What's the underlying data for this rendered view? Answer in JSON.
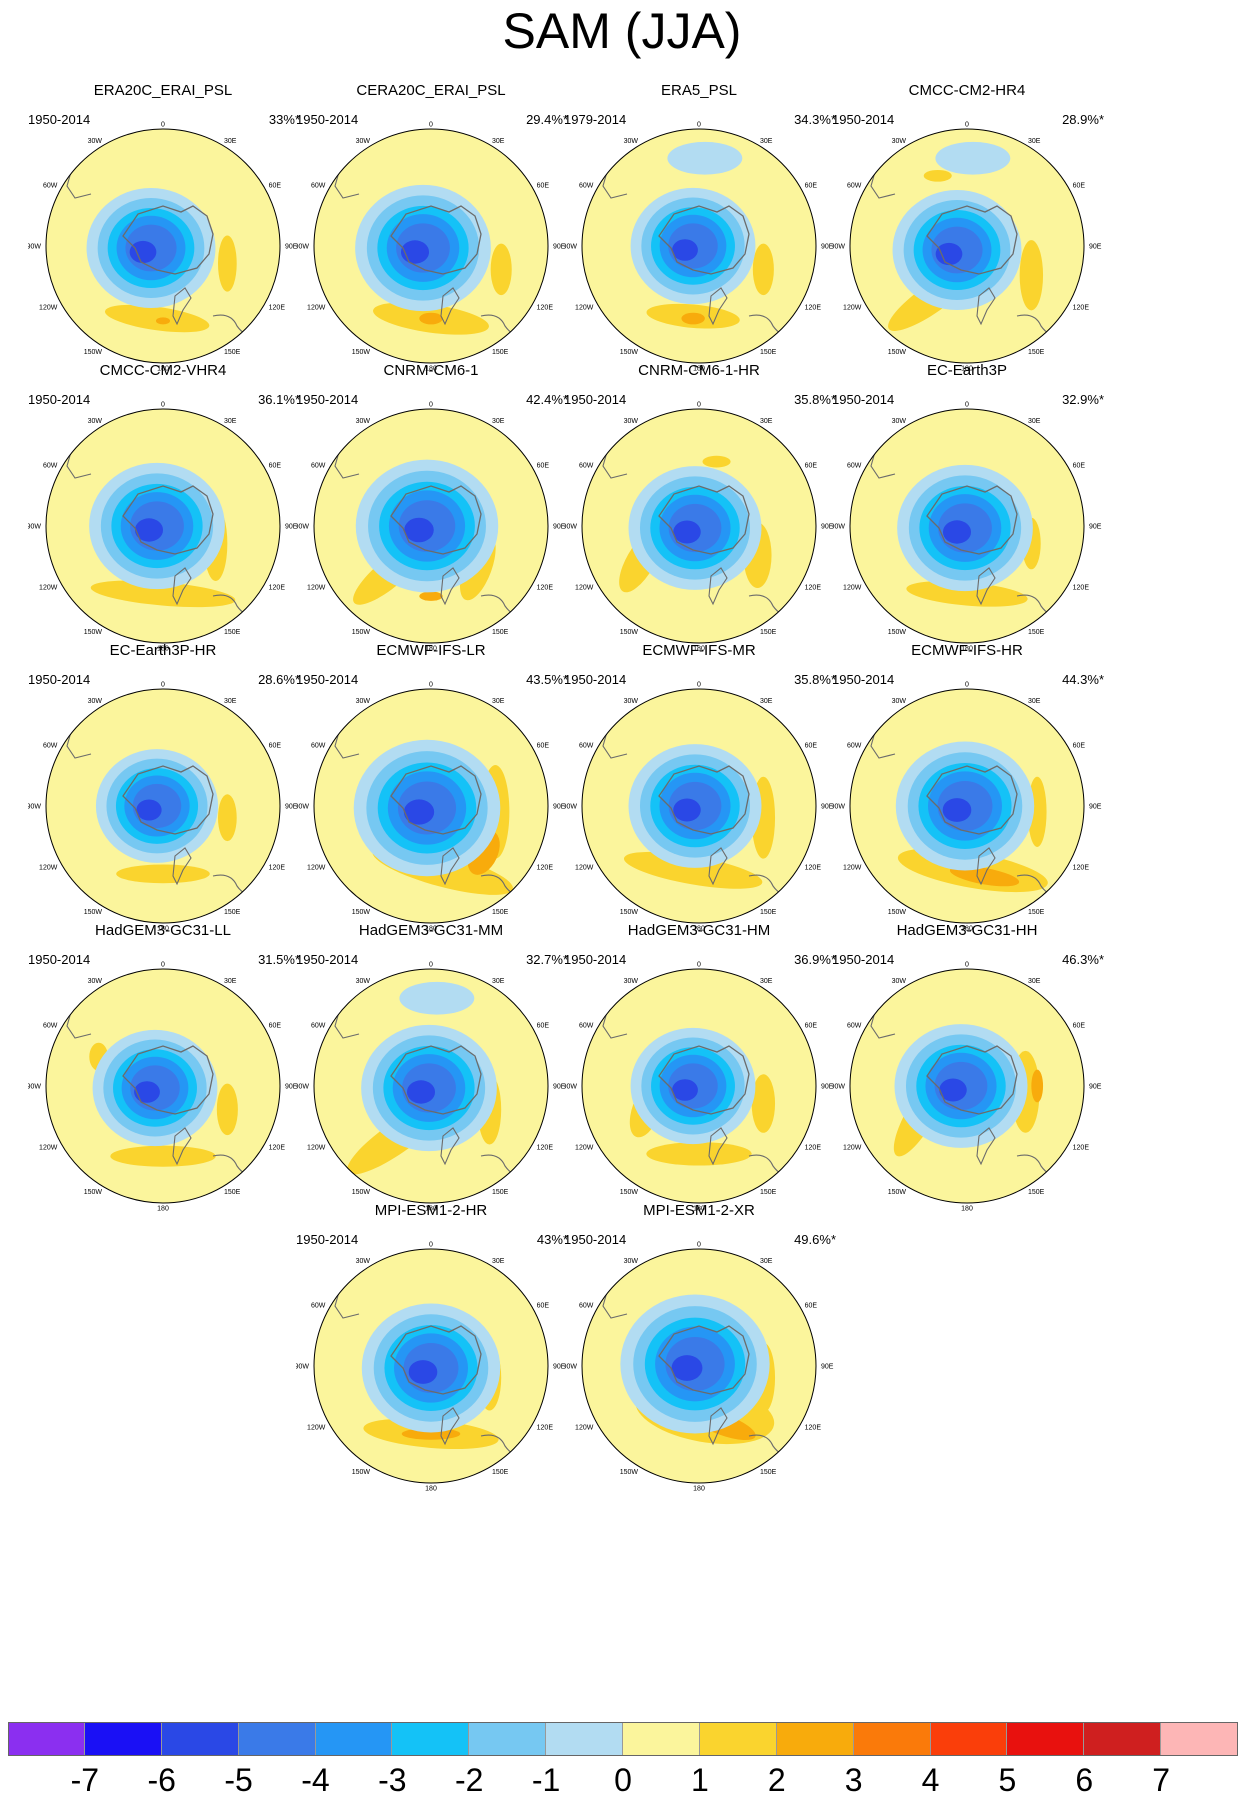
{
  "title": "SAM (JJA)",
  "lon_labels": [
    "0",
    "30E",
    "60E",
    "90E",
    "120E",
    "150E",
    "180",
    "150W",
    "120W",
    "90W",
    "60W",
    "30W"
  ],
  "panels": [
    {
      "model": "ERA20C_ERAI_PSL",
      "period": "1950-2014",
      "pct": "33%*"
    },
    {
      "model": "CERA20C_ERAI_PSL",
      "period": "1950-2014",
      "pct": "29.4%*"
    },
    {
      "model": "ERA5_PSL",
      "period": "1979-2014",
      "pct": "34.3%*"
    },
    {
      "model": "CMCC-CM2-HR4",
      "period": "1950-2014",
      "pct": "28.9%*"
    },
    {
      "model": "CMCC-CM2-VHR4",
      "period": "1950-2014",
      "pct": "36.1%*"
    },
    {
      "model": "CNRM-CM6-1",
      "period": "1950-2014",
      "pct": "42.4%*"
    },
    {
      "model": "CNRM-CM6-1-HR",
      "period": "1950-2014",
      "pct": "35.8%*"
    },
    {
      "model": "EC-Earth3P",
      "period": "1950-2014",
      "pct": "32.9%*"
    },
    {
      "model": "EC-Earth3P-HR",
      "period": "1950-2014",
      "pct": "28.6%*"
    },
    {
      "model": "ECMWF-IFS-LR",
      "period": "1950-2014",
      "pct": "43.5%*"
    },
    {
      "model": "ECMWF-IFS-MR",
      "period": "1950-2014",
      "pct": "35.8%*"
    },
    {
      "model": "ECMWF-IFS-HR",
      "period": "1950-2014",
      "pct": "44.3%*"
    },
    {
      "model": "HadGEM3-GC31-LL",
      "period": "1950-2014",
      "pct": "31.5%*"
    },
    {
      "model": "HadGEM3-GC31-MM",
      "period": "1950-2014",
      "pct": "32.7%*"
    },
    {
      "model": "HadGEM3-GC31-HM",
      "period": "1950-2014",
      "pct": "36.9%*"
    },
    {
      "model": "HadGEM3-GC31-HH",
      "period": "1950-2014",
      "pct": "46.3%*"
    },
    {
      "model": "MPI-ESM1-2-HR",
      "period": "1950-2014",
      "pct": "43%*"
    },
    {
      "model": "MPI-ESM1-2-XR",
      "period": "1950-2014",
      "pct": "49.6%*"
    }
  ],
  "colorbar": {
    "colors": [
      "#8b2ff0",
      "#1a10f5",
      "#2a48e6",
      "#3a7ae8",
      "#2596f5",
      "#14c2f7",
      "#76c8f2",
      "#b2dcf2",
      "#fbf59c",
      "#fad42e",
      "#f8ab0c",
      "#fa7a0a",
      "#fa3e0a",
      "#e8110e",
      "#cf1f1f",
      "#fdb6b6"
    ],
    "ticks": [
      "-7",
      "-6",
      "-5",
      "-4",
      "-3",
      "-2",
      "-1",
      "0",
      "1",
      "2",
      "3",
      "4",
      "5",
      "6",
      "7"
    ]
  }
}
